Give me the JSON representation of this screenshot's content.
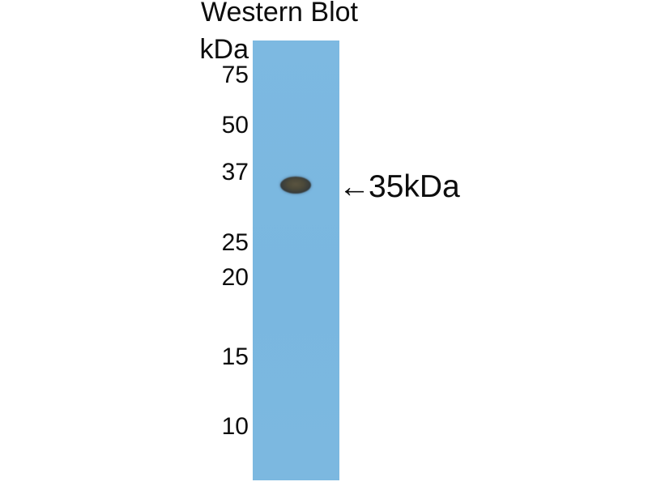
{
  "figure": {
    "title": "Western Blot",
    "unit_label": "kDa",
    "ladder": [
      "75",
      "50",
      "37",
      "25",
      "20",
      "15",
      "10"
    ],
    "band": {
      "arrow": "←",
      "label": "35kDa",
      "annotation_full": "←35kDa"
    },
    "colors": {
      "background": "#ffffff",
      "lane_blue": "#7cb8e0",
      "band_edge": "#2b333e",
      "band_center": "#57523d",
      "text": "#0d0d0d"
    }
  }
}
